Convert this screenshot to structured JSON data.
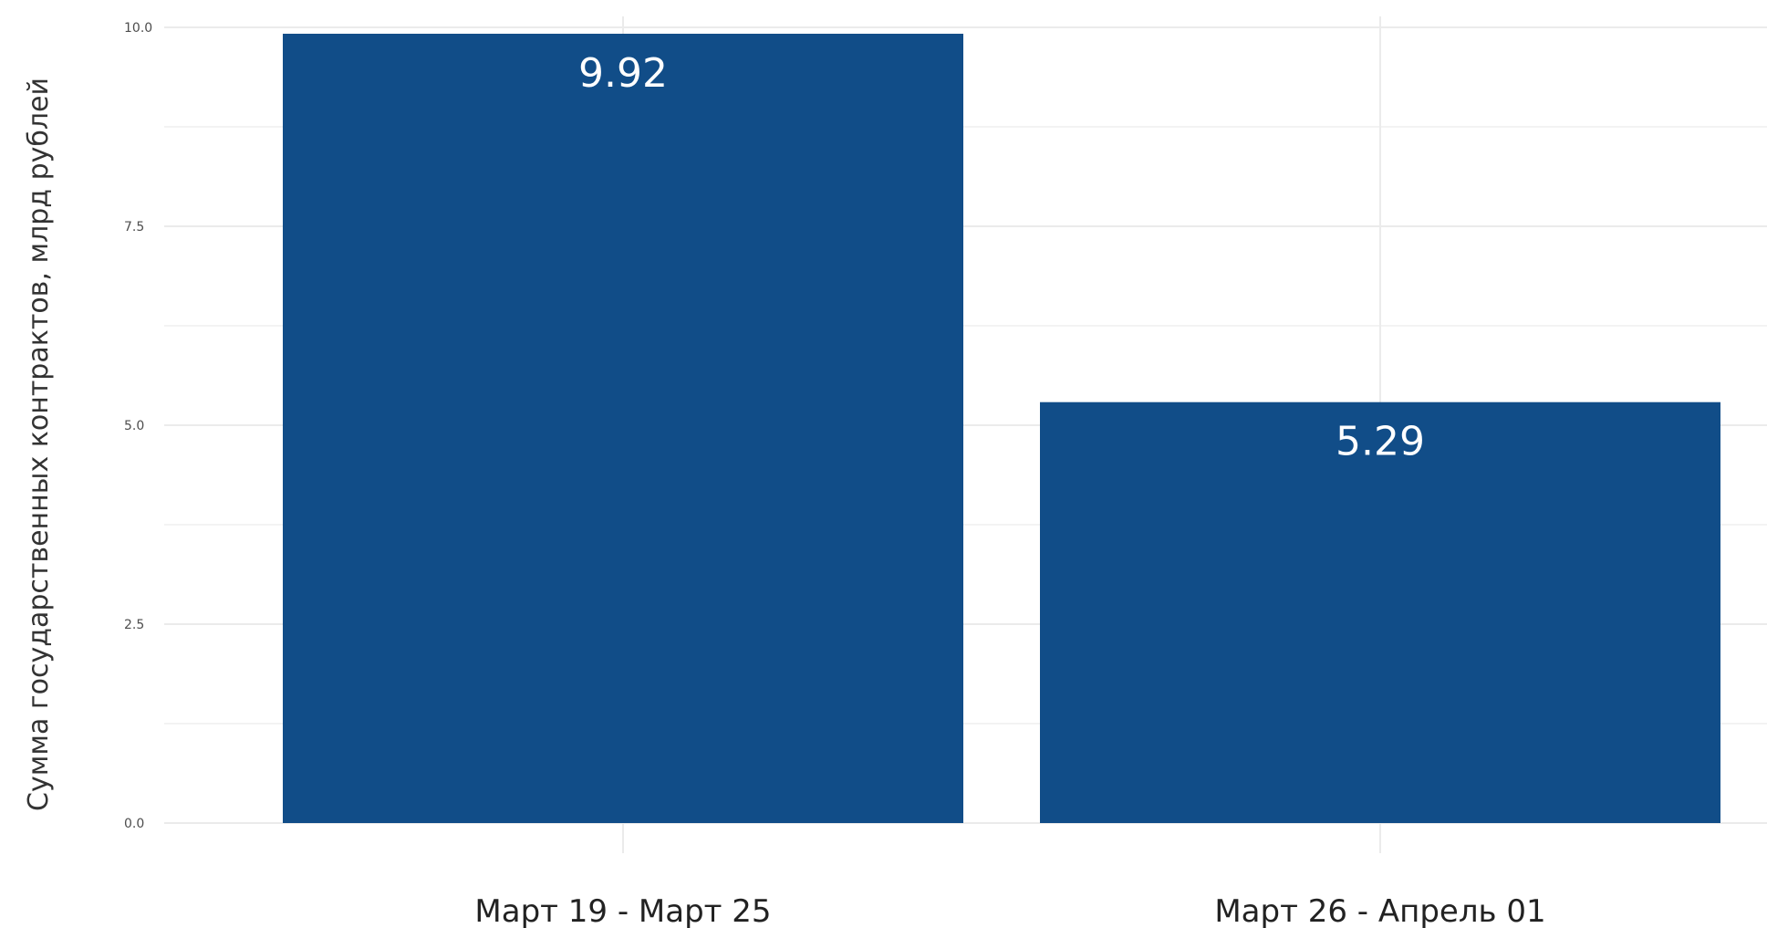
{
  "chart_data": {
    "type": "bar",
    "categories": [
      "Март 19 - Март 25",
      "Март 26 - Апрель 01"
    ],
    "values": [
      9.92,
      5.29
    ],
    "value_labels": [
      "9.92",
      "5.29"
    ],
    "ylabel": "Сумма государственных контрактов, млрд рублей",
    "ylim": [
      0,
      10
    ],
    "yticks": [
      0.0,
      2.5,
      5.0,
      7.5,
      10.0
    ],
    "ytick_labels": [
      "0.0",
      "2.5",
      "5.0",
      "7.5",
      "10.0"
    ],
    "grid": true,
    "legend": "none",
    "colors": {
      "bar": "#114d88",
      "grid_major": "#ebebeb",
      "grid_minor": "#f3f3f3",
      "value_label": "#ffffff"
    }
  }
}
